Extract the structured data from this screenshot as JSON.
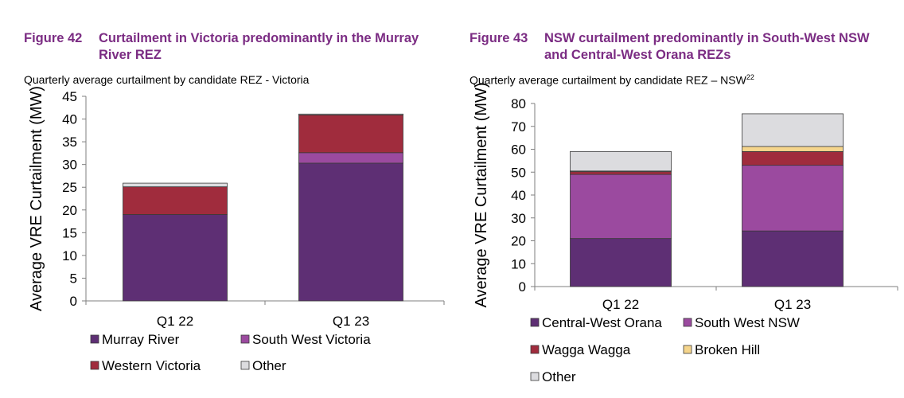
{
  "figures": [
    {
      "number": "Figure 42",
      "title": "Curtailment in Victoria predominantly in the Murray River REZ",
      "subtitle": "Quarterly average curtailment by candidate REZ - Victoria",
      "subtitle_sup": ""
    },
    {
      "number": "Figure 43",
      "title": "NSW curtailment predominantly in South-West NSW and Central-West Orana REZs",
      "subtitle": "Quarterly average curtailment by candidate REZ – NSW",
      "subtitle_sup": "22"
    }
  ],
  "chart_data": [
    {
      "type": "bar",
      "stacked": true,
      "categories": [
        "Q1 22",
        "Q1 23"
      ],
      "series": [
        {
          "name": "Murray River",
          "values": [
            19,
            30.3
          ],
          "color": "#5e2f74"
        },
        {
          "name": "South West Victoria",
          "values": [
            0,
            2.3
          ],
          "color": "#9b4a9f"
        },
        {
          "name": "Western Victoria",
          "values": [
            6.1,
            8.3
          ],
          "color": "#a02c3d"
        },
        {
          "name": "Other",
          "values": [
            0.8,
            0.2
          ],
          "color": "#dcdcdf"
        }
      ],
      "ylabel": "Average VRE Curtailment (MW)",
      "ylim": [
        0,
        45
      ],
      "yticks": [
        0,
        5,
        10,
        15,
        20,
        25,
        30,
        35,
        40,
        45
      ],
      "legend_position": "bottom",
      "grid": false
    },
    {
      "type": "bar",
      "stacked": true,
      "categories": [
        "Q1 22",
        "Q1 23"
      ],
      "series": [
        {
          "name": "Central-West Orana",
          "values": [
            21,
            24.3
          ],
          "color": "#5e2f74"
        },
        {
          "name": "South West NSW",
          "values": [
            28,
            28.7
          ],
          "color": "#9b4a9f"
        },
        {
          "name": "Wagga Wagga",
          "values": [
            1.2,
            6
          ],
          "color": "#a02c3d"
        },
        {
          "name": "Broken Hill",
          "values": [
            0.3,
            2.2
          ],
          "color": "#f5d58c"
        },
        {
          "name": "Other",
          "values": [
            8.5,
            14.3
          ],
          "color": "#dcdcdf"
        }
      ],
      "ylabel": "Average VRE Curtailment (MW)",
      "ylim": [
        0,
        80
      ],
      "yticks": [
        0,
        10,
        20,
        30,
        40,
        50,
        60,
        70,
        80
      ],
      "legend_position": "bottom",
      "grid": false
    }
  ]
}
